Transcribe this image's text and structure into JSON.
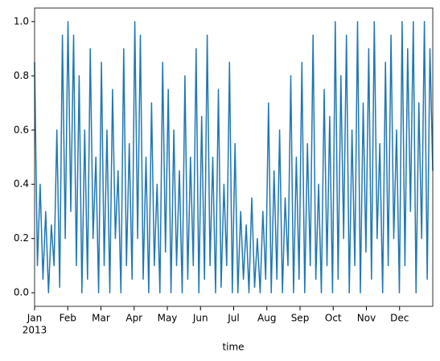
{
  "chart_data": {
    "type": "line",
    "x_label": "time",
    "x_year_label": "2013",
    "xticks": [
      {
        "value": "2013-01",
        "label": "Jan"
      },
      {
        "value": "2013-02",
        "label": "Feb"
      },
      {
        "value": "2013-03",
        "label": "Mar"
      },
      {
        "value": "2013-04",
        "label": "Apr"
      },
      {
        "value": "2013-05",
        "label": "May"
      },
      {
        "value": "2013-06",
        "label": "Jun"
      },
      {
        "value": "2013-07",
        "label": "Jul"
      },
      {
        "value": "2013-08",
        "label": "Aug"
      },
      {
        "value": "2013-09",
        "label": "Sep"
      },
      {
        "value": "2013-10",
        "label": "Oct"
      },
      {
        "value": "2013-11",
        "label": "Nov"
      },
      {
        "value": "2013-12",
        "label": "Dec"
      }
    ],
    "ylim": [
      -0.05,
      1.05
    ],
    "yticks": [
      {
        "value": 0,
        "label": "0.0"
      },
      {
        "value": 0.2,
        "label": "0.2"
      },
      {
        "value": 0.4,
        "label": "0.4"
      },
      {
        "value": 0.6,
        "label": "0.6"
      },
      {
        "value": 0.8,
        "label": "0.8"
      },
      {
        "value": 1,
        "label": "1.0"
      }
    ],
    "color": "#1f77b4",
    "values": [
      0.85,
      0.1,
      0.4,
      0.05,
      0.3,
      0.0,
      0.25,
      0.1,
      0.6,
      0.02,
      0.95,
      0.2,
      1.0,
      0.3,
      0.95,
      0.1,
      0.8,
      0.0,
      0.6,
      0.05,
      0.9,
      0.2,
      0.5,
      0.0,
      0.85,
      0.1,
      0.6,
      0.0,
      0.75,
      0.2,
      0.45,
      0.0,
      0.9,
      0.1,
      0.55,
      0.05,
      1.0,
      0.2,
      0.95,
      0.05,
      0.5,
      0.0,
      0.7,
      0.1,
      0.4,
      0.0,
      0.85,
      0.15,
      0.75,
      0.0,
      0.6,
      0.1,
      0.45,
      0.0,
      0.8,
      0.05,
      0.5,
      0.1,
      0.9,
      0.0,
      0.65,
      0.05,
      0.95,
      0.1,
      0.5,
      0.0,
      0.75,
      0.02,
      0.4,
      0.1,
      0.85,
      0.0,
      0.55,
      0.0,
      0.3,
      0.05,
      0.25,
      0.0,
      0.35,
      0.02,
      0.2,
      0.0,
      0.3,
      0.05,
      0.7,
      0.0,
      0.45,
      0.05,
      0.6,
      0.0,
      0.35,
      0.1,
      0.8,
      0.0,
      0.5,
      0.05,
      0.85,
      0.0,
      0.55,
      0.1,
      0.95,
      0.05,
      0.4,
      0.0,
      0.75,
      0.1,
      0.65,
      0.0,
      1.0,
      0.05,
      0.8,
      0.2,
      0.95,
      0.0,
      0.6,
      0.1,
      1.0,
      0.0,
      0.7,
      0.15,
      0.9,
      0.05,
      1.0,
      0.2,
      0.55,
      0.0,
      0.85,
      0.1,
      0.95,
      0.2,
      0.6,
      0.0,
      1.0,
      0.1,
      0.9,
      0.3,
      1.0,
      0.0,
      0.7,
      0.2,
      1.0,
      0.05,
      0.9,
      0.45
    ]
  }
}
